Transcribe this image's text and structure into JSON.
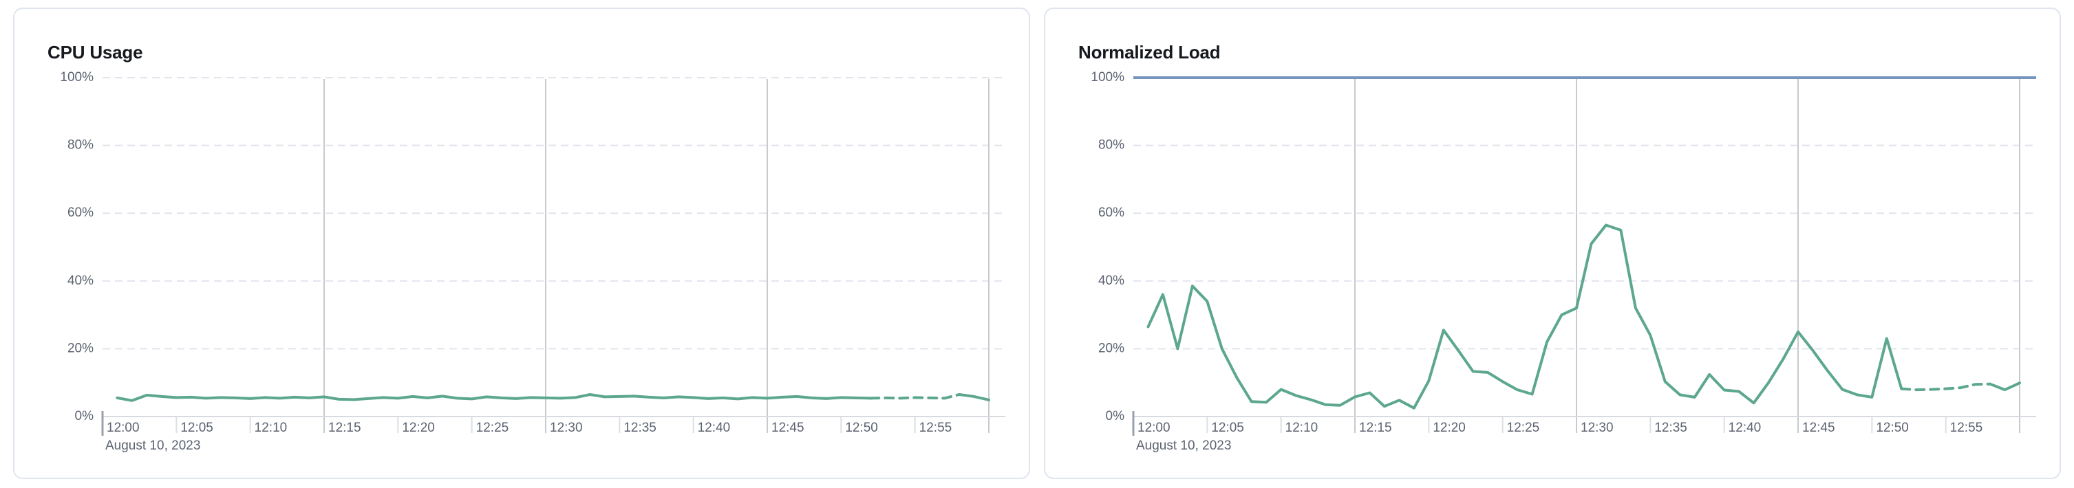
{
  "page": {
    "background": "#ffffff"
  },
  "chart_data": [
    {
      "type": "line",
      "title": "CPU Usage",
      "ylabel": "percent",
      "ylim": [
        0,
        100
      ],
      "y_tick_labels": [
        "100%",
        "80%",
        "60%",
        "40%",
        "20%",
        "0%"
      ],
      "y_tick_values": [
        100,
        80,
        60,
        40,
        20,
        0
      ],
      "x_tick_labels": [
        "12:00",
        "12:05",
        "12:10",
        "12:15",
        "12:20",
        "12:25",
        "12:30",
        "12:35",
        "12:40",
        "12:45",
        "12:50",
        "12:55"
      ],
      "x_range_minutes": [
        0,
        60
      ],
      "major_gridline_minutes": [
        15,
        30,
        45,
        60
      ],
      "minor_tick_minutes": [
        5,
        10,
        20,
        25,
        35,
        40,
        50,
        55
      ],
      "date_label": "August 10, 2023",
      "grid": "horizontal-dashed",
      "legend": "none",
      "limit_line": null,
      "series": [
        {
          "name": "CPU Usage",
          "color": "#5ca78e",
          "start_minute": 1,
          "values": [
            5.5,
            4.7,
            6.3,
            5.9,
            5.6,
            5.7,
            5.4,
            5.6,
            5.5,
            5.3,
            5.6,
            5.4,
            5.7,
            5.5,
            5.8,
            5.1,
            5.0,
            5.3,
            5.6,
            5.4,
            5.9,
            5.5,
            6.0,
            5.4,
            5.2,
            5.8,
            5.5,
            5.3,
            5.6,
            5.5,
            5.4,
            5.6,
            6.5,
            5.8,
            5.9,
            6.0,
            5.7,
            5.5,
            5.8,
            5.6,
            5.3,
            5.5,
            5.2,
            5.6,
            5.4,
            5.7,
            5.9,
            5.5,
            5.3,
            5.6,
            5.5,
            5.4,
            5.5,
            5.4,
            5.6,
            5.5,
            5.4,
            6.5,
            5.9,
            4.9
          ],
          "dashed_forecast_minutes": [
            52,
            58
          ]
        }
      ]
    },
    {
      "type": "line",
      "title": "Normalized Load",
      "ylabel": "percent",
      "ylim": [
        0,
        100
      ],
      "y_tick_labels": [
        "100%",
        "80%",
        "60%",
        "40%",
        "20%",
        "0%"
      ],
      "y_tick_values": [
        100,
        80,
        60,
        40,
        20,
        0
      ],
      "x_tick_labels": [
        "12:00",
        "12:05",
        "12:10",
        "12:15",
        "12:20",
        "12:25",
        "12:30",
        "12:35",
        "12:40",
        "12:45",
        "12:50",
        "12:55"
      ],
      "x_range_minutes": [
        0,
        60
      ],
      "major_gridline_minutes": [
        15,
        30,
        45,
        60
      ],
      "minor_tick_minutes": [
        5,
        10,
        20,
        25,
        35,
        40,
        50,
        55
      ],
      "date_label": "August 10, 2023",
      "grid": "horizontal-dashed",
      "legend": "none",
      "limit_line": {
        "value": 100,
        "color": "#7495bd"
      },
      "series": [
        {
          "name": "Normalized Load",
          "color": "#5ca78e",
          "start_minute": 1,
          "values": [
            26.5,
            36,
            20,
            38.5,
            34,
            20,
            11.5,
            4.4,
            4.2,
            8,
            6.2,
            5,
            3.5,
            3.3,
            5.8,
            7,
            3,
            4.8,
            2.5,
            10.5,
            25.5,
            19.5,
            13.3,
            13,
            10.3,
            7.9,
            6.6,
            22,
            30,
            32,
            51,
            56.5,
            55,
            32,
            24,
            10.3,
            6.4,
            5.7,
            12.4,
            7.8,
            7.4,
            4,
            10,
            17,
            25,
            19.5,
            13.5,
            8,
            6.4,
            5.7,
            23,
            8.2,
            7.9,
            8,
            8.2,
            8.5,
            9.5,
            9.6,
            7.9,
            9.9
          ],
          "dashed_forecast_minutes": [
            52,
            58
          ]
        }
      ]
    }
  ]
}
